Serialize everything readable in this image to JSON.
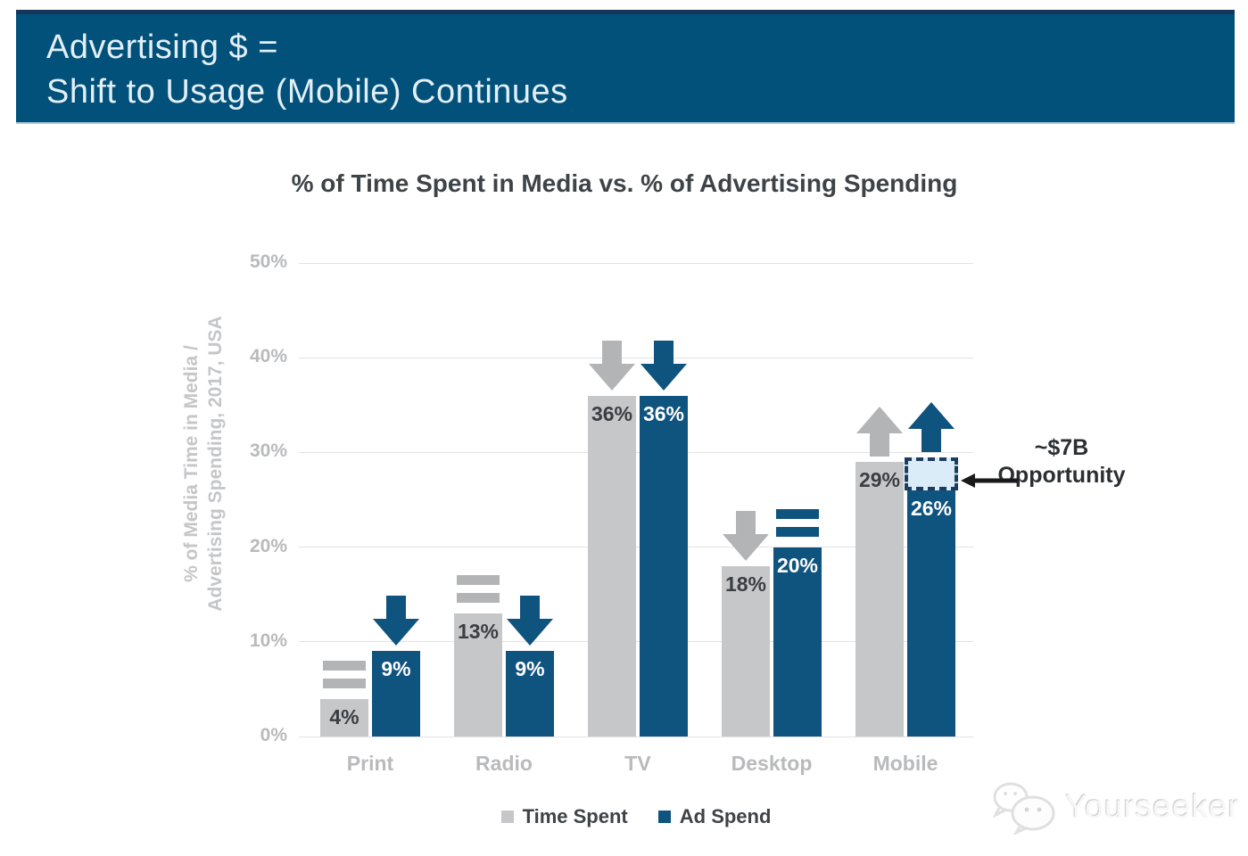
{
  "header": {
    "line1": "Advertising $ =",
    "line2": "Shift to Usage (Mobile) Continues"
  },
  "chart_data": {
    "type": "bar",
    "title": "% of Time Spent in Media vs. % of Advertising Spending",
    "ylabel_line1": "% of Media Time in Media /",
    "ylabel_line2": "Advertising Spending, 2017, USA",
    "categories": [
      "Print",
      "Radio",
      "TV",
      "Desktop",
      "Mobile"
    ],
    "series": [
      {
        "name": "Time Spent",
        "color": "#c6c7c9",
        "values": [
          4,
          13,
          36,
          18,
          29
        ],
        "labels": [
          "4%",
          "13%",
          "36%",
          "18%",
          "29%"
        ],
        "trends": [
          "equal",
          "equal",
          "down",
          "down",
          "up"
        ]
      },
      {
        "name": "Ad Spend",
        "color": "#0f537f",
        "values": [
          9,
          9,
          36,
          20,
          26
        ],
        "labels": [
          "9%",
          "9%",
          "36%",
          "20%",
          "26%"
        ],
        "trends": [
          "down",
          "down",
          "down",
          "equal",
          "up"
        ]
      }
    ],
    "ylim": [
      0,
      50
    ],
    "yticks": [
      "0%",
      "10%",
      "20%",
      "30%",
      "40%",
      "50%"
    ],
    "grid": true,
    "legend_position": "bottom",
    "annotation": {
      "line1": "~$7B",
      "line2": "Opportunity",
      "target_category": "Mobile",
      "target_series": "Ad Spend",
      "box_from": 26,
      "box_to": 29.5
    }
  },
  "legend": {
    "items": [
      {
        "label": "Time Spent",
        "color": "#c6c7c9"
      },
      {
        "label": "Ad Spend",
        "color": "#0f537f"
      }
    ]
  },
  "watermark": {
    "text": "Yourseeker"
  },
  "colors": {
    "header_bg": "#02517a",
    "bar_gray": "#c6c7c9",
    "bar_blue": "#0f537f",
    "indicator_gray": "#b3b4b6",
    "indicator_blue": "#0f537f",
    "value_dark": "#3a3e42",
    "value_light": "#ffffff",
    "grid": "#e3e3e3",
    "tick_text": "#b9babc",
    "opportunity_fill": "#d9ecf8",
    "opportunity_border": "#1e3c5f",
    "annotation_arrow": "#1a1a1a"
  }
}
